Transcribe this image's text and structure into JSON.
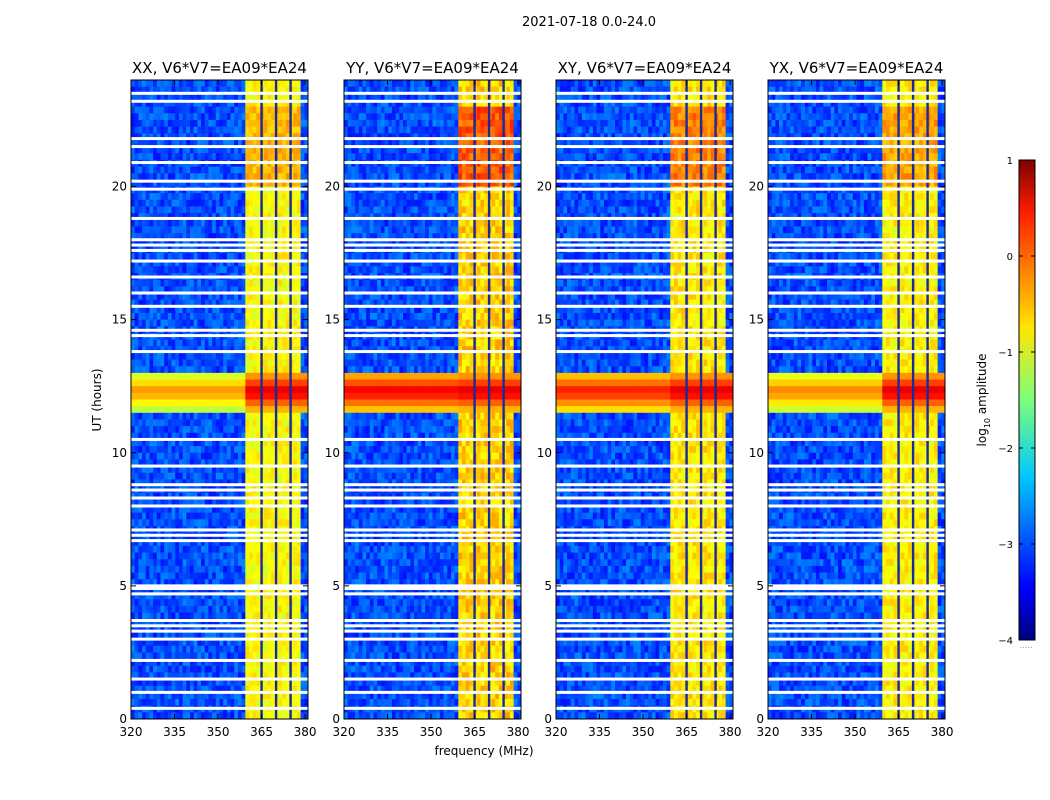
{
  "chart_data": {
    "type": "heatmap",
    "suptitle": "2021-07-18 0.0-24.0",
    "xlabel": "frequency (MHz)",
    "ylabel": "UT (hours)",
    "xlim": [
      320,
      381
    ],
    "ylim": [
      0,
      24
    ],
    "xticks": [
      "320",
      "335",
      "350",
      "365",
      "380"
    ],
    "yticks": [
      "0",
      "5",
      "10",
      "15",
      "20"
    ],
    "panels": [
      {
        "title": "XX, V6*V7=EA09*EA24",
        "rfi_strength": 0.55,
        "storm_strength": 0.6,
        "storm_spread": 0.55
      },
      {
        "title": "YY, V6*V7=EA09*EA24",
        "rfi_strength": 0.75,
        "storm_strength": 1.0,
        "storm_spread": 1.0
      },
      {
        "title": "XY, V6*V7=EA09*EA24",
        "rfi_strength": 0.65,
        "storm_strength": 0.85,
        "storm_spread": 0.9
      },
      {
        "title": "YX, V6*V7=EA09*EA24",
        "rfi_strength": 0.6,
        "storm_strength": 0.65,
        "storm_spread": 0.6
      }
    ],
    "rfi_band_mhz": [
      360,
      379
    ],
    "rfi_lines_mhz": [
      365,
      370,
      375
    ],
    "storm_ut_hours": [
      11.6,
      13.0
    ],
    "flagged_ut_hours": [
      0.4,
      1.0,
      1.5,
      2.2,
      3.0,
      3.3,
      3.5,
      3.7,
      4.7,
      4.9,
      5.0,
      6.7,
      6.9,
      7.1,
      8.0,
      8.3,
      8.6,
      8.8,
      9.5,
      10.5,
      13.8,
      14.4,
      14.6,
      15.5,
      16.0,
      16.6,
      17.2,
      17.6,
      17.8,
      18.0,
      18.8,
      19.9,
      20.2,
      20.9,
      21.5,
      21.8,
      23.2,
      23.5
    ],
    "colorbar": {
      "label": "log",
      "label_sub": "10",
      "label_rest": " amplitude",
      "ticks": [
        "1",
        "0",
        "−1",
        "−2",
        "−3",
        "−4"
      ],
      "range": [
        -4,
        1
      ],
      "footnote": "....."
    }
  }
}
